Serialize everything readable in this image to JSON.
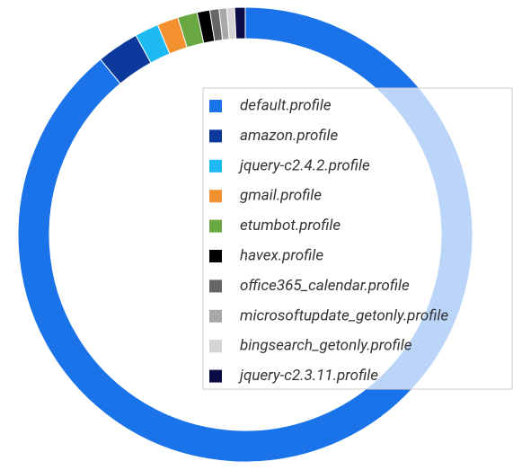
{
  "chart_data": {
    "type": "donut",
    "categories": [
      "default.profile",
      "amazon.profile",
      "jquery-c2.4.2.profile",
      "gmail.profile",
      "etumbot.profile",
      "havex.profile",
      "office365_calendar.profile",
      "microsoftupdate_getonly.profile",
      "bingsearch_getonly.profile",
      "jquery-c2.3.11.profile"
    ],
    "values": [
      89,
      3,
      1.7,
      1.5,
      1.4,
      0.9,
      0.65,
      0.55,
      0.55,
      0.75
    ],
    "colors": [
      "#1a73e8",
      "#0b3a9c",
      "#1cb9f3",
      "#f39131",
      "#6aa843",
      "#000000",
      "#666666",
      "#a8a8a8",
      "#d4d4d4",
      "#0b0b45"
    ],
    "legend": "right"
  }
}
